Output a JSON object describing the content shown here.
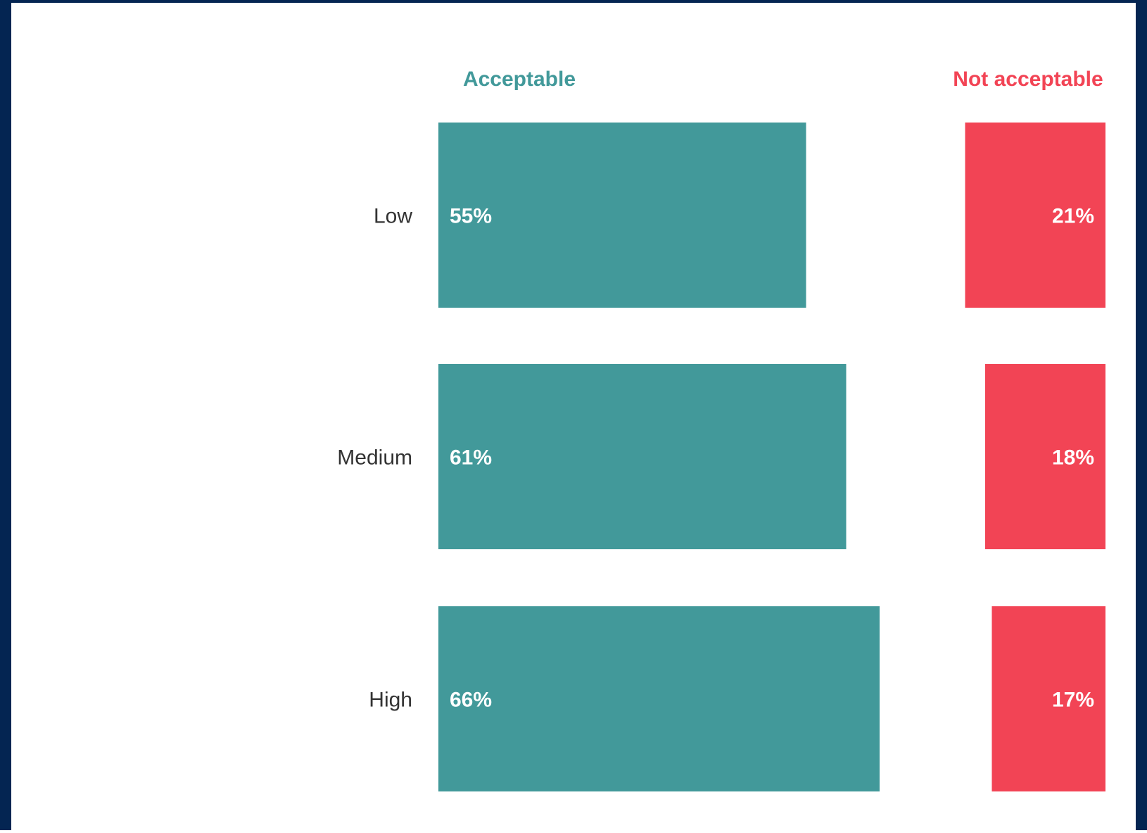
{
  "colors": {
    "frame": "#042552",
    "acceptable": "#42999A",
    "not_acceptable": "#F24455",
    "category_text": "#333333",
    "value_text": "#ffffff"
  },
  "chart_data": {
    "type": "bar",
    "orientation": "horizontal",
    "categories": [
      "Low",
      "Medium",
      "High"
    ],
    "series": [
      {
        "name": "Acceptable",
        "values": [
          55,
          61,
          66
        ],
        "labels": [
          "55%",
          "61%",
          "66%"
        ],
        "color": "#42999A",
        "align": "left"
      },
      {
        "name": "Not acceptable",
        "values": [
          21,
          18,
          17
        ],
        "labels": [
          "21%",
          "18%",
          "17%"
        ],
        "color": "#F24455",
        "align": "right"
      }
    ],
    "unit": "%",
    "grid": false,
    "legend": "column headers above bars"
  }
}
